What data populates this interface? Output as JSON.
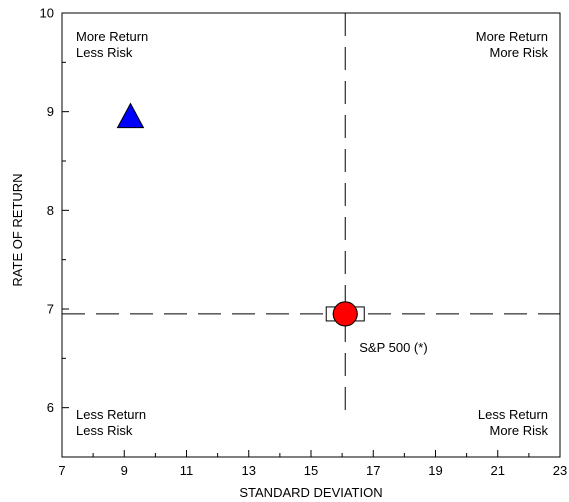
{
  "chart_data": {
    "type": "scatter",
    "xlabel": "STANDARD DEVIATION",
    "ylabel": "RATE OF RETURN",
    "xlim": [
      7,
      23
    ],
    "ylim": [
      5.5,
      10
    ],
    "x_ticks": [
      7,
      9,
      11,
      13,
      15,
      17,
      19,
      21,
      23
    ],
    "x_minor_step": 1,
    "y_ticks": [
      6,
      7,
      8,
      9,
      10
    ],
    "y_minor_step": 0.5,
    "grid": false,
    "reference_lines": {
      "x": 16.1,
      "y": 6.95,
      "style": "dashed"
    },
    "quadrant_labels": {
      "top_left": [
        "More Return",
        "Less Risk"
      ],
      "top_right": [
        "More Return",
        "More Risk"
      ],
      "bottom_left": [
        "Less Return",
        "Less Risk"
      ],
      "bottom_right": [
        "Less Return",
        "More Risk"
      ]
    },
    "points": [
      {
        "x": 9.2,
        "y": 8.95,
        "marker": "triangle",
        "color": "#0000ff",
        "label": ""
      },
      {
        "x": 16.1,
        "y": 6.95,
        "marker": "circle",
        "color": "#ff0000",
        "label": ""
      },
      {
        "x": 16.1,
        "y": 6.95,
        "marker": "square",
        "color": "#ffffff",
        "label": "S&P 500 (*)"
      }
    ]
  }
}
